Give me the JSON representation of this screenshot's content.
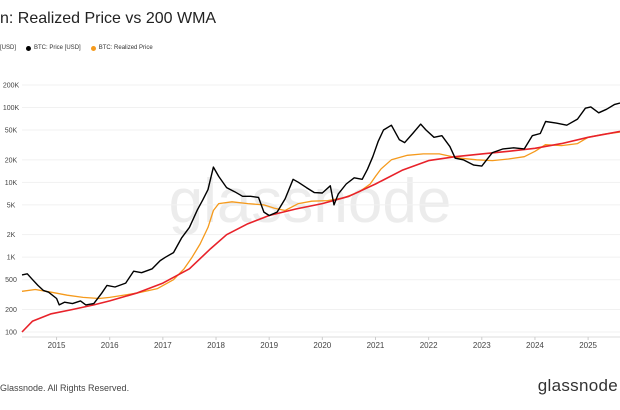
{
  "chart_data": {
    "type": "line",
    "title": "n: Realized Price vs 200 WMA",
    "legend": [
      {
        "label": "[USD]",
        "color": ""
      },
      {
        "label": "BTC: Price [USD]",
        "color": "#000000"
      },
      {
        "label": "BTC: Realized Price",
        "color": "#f59a1c"
      }
    ],
    "x_ticks": [
      "2015",
      "2016",
      "2017",
      "2018",
      "2019",
      "2020",
      "2021",
      "2022",
      "2023",
      "2024",
      "2025"
    ],
    "y_scale": "log",
    "y_ticks": [
      {
        "value": 100,
        "label": "100"
      },
      {
        "value": 200,
        "label": "200"
      },
      {
        "value": 500,
        "label": "500"
      },
      {
        "value": 1000,
        "label": "1K"
      },
      {
        "value": 2000,
        "label": "2K"
      },
      {
        "value": 5000,
        "label": "5K"
      },
      {
        "value": 10000,
        "label": "10K"
      },
      {
        "value": 20000,
        "label": "20K"
      },
      {
        "value": 50000,
        "label": "50K"
      },
      {
        "value": 100000,
        "label": "100K"
      },
      {
        "value": 200000,
        "label": "200K"
      }
    ],
    "ylim": [
      100,
      200000
    ],
    "xlim": [
      2014.35,
      2025.6
    ],
    "watermark": "glassnode",
    "series": [
      {
        "name": "BTC: Price [USD]",
        "color": "#000000",
        "x": [
          2014.35,
          2014.45,
          2014.55,
          2014.65,
          2014.75,
          2014.85,
          2015.0,
          2015.05,
          2015.15,
          2015.3,
          2015.45,
          2015.55,
          2015.7,
          2015.85,
          2015.95,
          2016.1,
          2016.3,
          2016.45,
          2016.6,
          2016.8,
          2016.95,
          2017.05,
          2017.2,
          2017.35,
          2017.5,
          2017.65,
          2017.75,
          2017.85,
          2017.95,
          2018.05,
          2018.2,
          2018.35,
          2018.5,
          2018.65,
          2018.8,
          2018.9,
          2019.0,
          2019.15,
          2019.3,
          2019.45,
          2019.55,
          2019.7,
          2019.85,
          2020.0,
          2020.15,
          2020.22,
          2020.3,
          2020.45,
          2020.6,
          2020.75,
          2020.85,
          2020.95,
          2021.05,
          2021.15,
          2021.3,
          2021.45,
          2021.55,
          2021.7,
          2021.85,
          2021.95,
          2022.1,
          2022.25,
          2022.4,
          2022.5,
          2022.65,
          2022.85,
          2023.0,
          2023.2,
          2023.4,
          2023.6,
          2023.8,
          2023.95,
          2024.1,
          2024.2,
          2024.4,
          2024.6,
          2024.8,
          2024.95,
          2025.05,
          2025.2,
          2025.35,
          2025.5,
          2025.6
        ],
        "values": [
          580,
          600,
          500,
          420,
          360,
          340,
          280,
          230,
          250,
          240,
          260,
          230,
          240,
          330,
          420,
          400,
          450,
          650,
          620,
          700,
          900,
          1000,
          1150,
          1800,
          2500,
          4300,
          5800,
          8000,
          16000,
          12000,
          8500,
          7500,
          6500,
          6500,
          6300,
          4000,
          3600,
          4000,
          6000,
          11000,
          10000,
          8500,
          7300,
          7200,
          9000,
          5000,
          7000,
          9500,
          11500,
          11000,
          15000,
          22000,
          35000,
          50000,
          58000,
          37000,
          34000,
          45000,
          60000,
          50000,
          40000,
          42000,
          30000,
          21000,
          20000,
          17000,
          16500,
          25000,
          28000,
          29000,
          28000,
          42000,
          45000,
          65000,
          62000,
          58000,
          70000,
          98000,
          102000,
          85000,
          95000,
          110000,
          115000
        ]
      },
      {
        "name": "BTC: Realized Price",
        "color": "#f59a1c",
        "x": [
          2014.35,
          2014.6,
          2014.9,
          2015.2,
          2015.5,
          2015.8,
          2016.0,
          2016.5,
          2016.9,
          2017.2,
          2017.4,
          2017.55,
          2017.7,
          2017.85,
          2017.95,
          2018.05,
          2018.3,
          2018.6,
          2018.9,
          2019.1,
          2019.3,
          2019.55,
          2019.8,
          2020.1,
          2020.4,
          2020.7,
          2020.9,
          2021.0,
          2021.1,
          2021.3,
          2021.6,
          2021.9,
          2022.2,
          2022.45,
          2022.6,
          2022.9,
          2023.2,
          2023.5,
          2023.8,
          2024.0,
          2024.2,
          2024.5,
          2024.8,
          2025.0,
          2025.3,
          2025.6
        ],
        "values": [
          350,
          370,
          340,
          310,
          290,
          280,
          290,
          330,
          380,
          500,
          700,
          1000,
          1500,
          2500,
          4200,
          5200,
          5500,
          5200,
          5000,
          4500,
          4200,
          5200,
          5600,
          5700,
          6200,
          7500,
          9500,
          12000,
          15000,
          20000,
          23000,
          24000,
          24000,
          22000,
          21000,
          20000,
          19500,
          20500,
          22000,
          26000,
          32000,
          31000,
          33000,
          40000,
          44000,
          47000
        ]
      },
      {
        "name": "200 WMA",
        "color": "#e8222a",
        "x": [
          2014.35,
          2014.55,
          2014.9,
          2015.3,
          2015.7,
          2016.0,
          2016.5,
          2017.0,
          2017.5,
          2017.9,
          2018.2,
          2018.6,
          2019.0,
          2019.5,
          2020.0,
          2020.5,
          2021.0,
          2021.5,
          2022.0,
          2022.5,
          2023.0,
          2023.5,
          2024.0,
          2024.5,
          2025.0,
          2025.6
        ],
        "values": [
          100,
          140,
          175,
          200,
          230,
          260,
          330,
          450,
          700,
          1300,
          2000,
          2800,
          3600,
          4400,
          5200,
          6500,
          9500,
          14500,
          19500,
          22000,
          24000,
          26000,
          28500,
          33000,
          40000,
          48000
        ]
      }
    ]
  },
  "footer": {
    "copyright": "Glassnode. All Rights Reserved.",
    "logo": "glassnode"
  }
}
